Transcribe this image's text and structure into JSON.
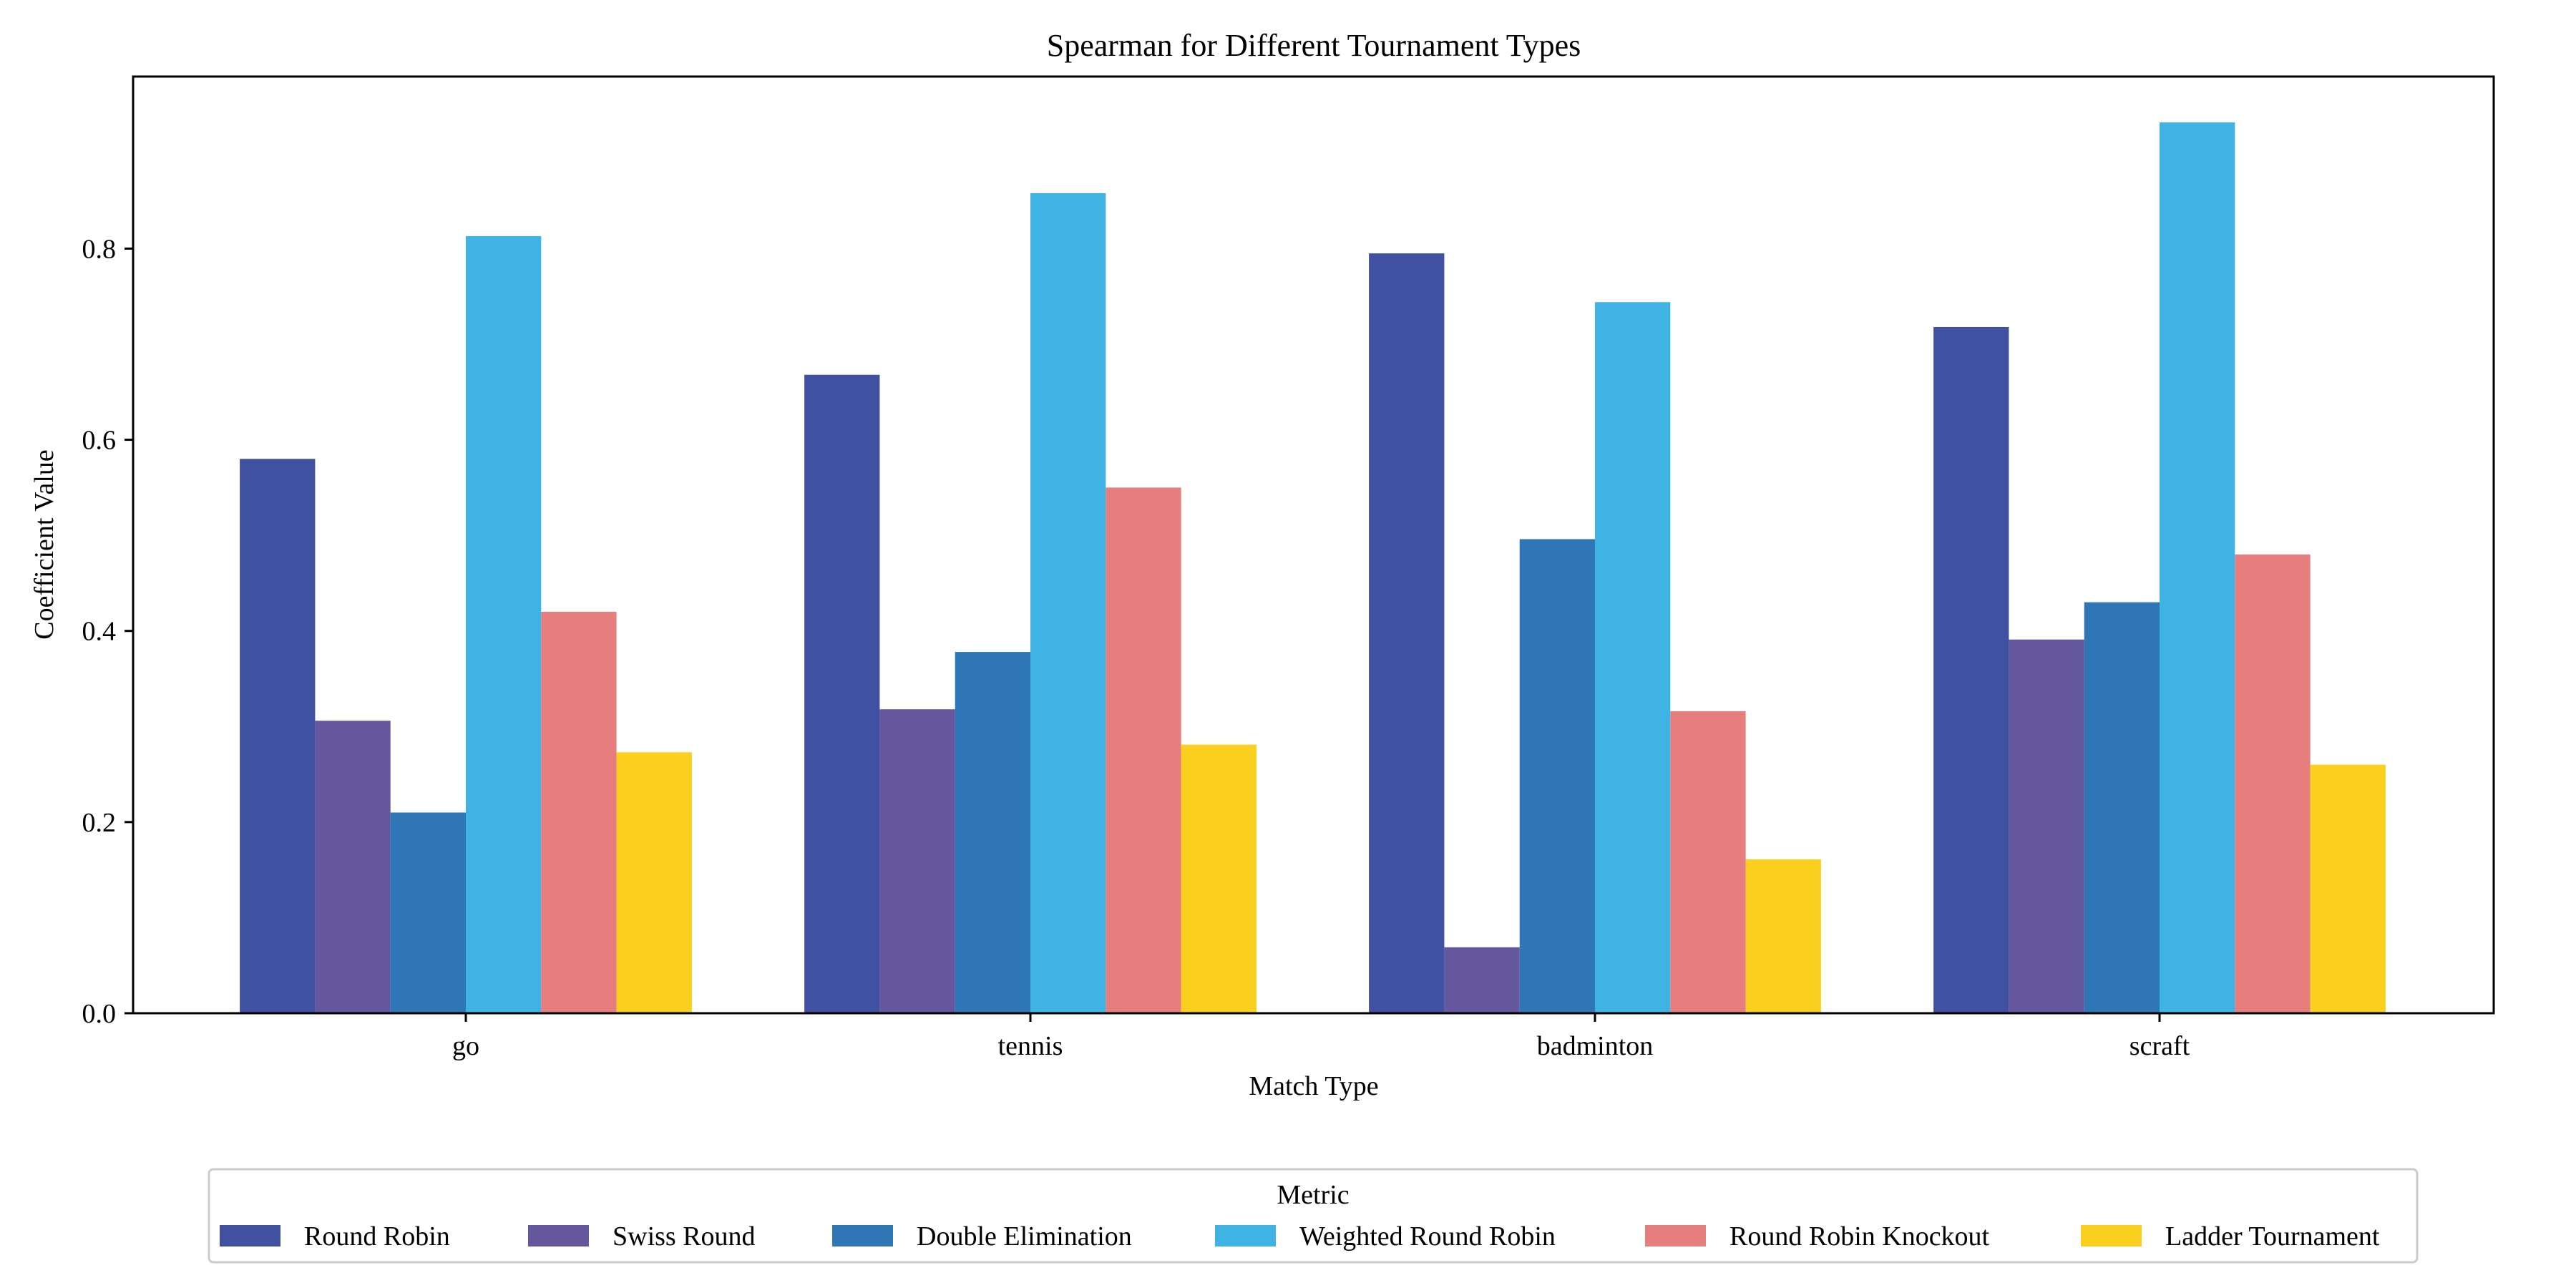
{
  "chart_data": {
    "type": "bar",
    "title": "Spearman for Different Tournament Types",
    "xlabel": "Match Type",
    "ylabel": "Coefficient Value",
    "ylim": [
      0,
      0.98
    ],
    "yticks": [
      0.0,
      0.2,
      0.4,
      0.6,
      0.8
    ],
    "ytick_labels": [
      "0.0",
      "0.2",
      "0.4",
      "0.6",
      "0.8"
    ],
    "categories": [
      "go",
      "tennis",
      "badminton",
      "scraft"
    ],
    "series": [
      {
        "name": "Round Robin",
        "color": "#3f51a0",
        "values": [
          0.58,
          0.668,
          0.795,
          0.718
        ]
      },
      {
        "name": "Swiss Round",
        "color": "#65579e",
        "values": [
          0.306,
          0.318,
          0.069,
          0.391
        ]
      },
      {
        "name": "Double Elimination",
        "color": "#2f76b6",
        "values": [
          0.21,
          0.378,
          0.496,
          0.43
        ]
      },
      {
        "name": "Weighted Round Robin",
        "color": "#3fb3e3",
        "values": [
          0.813,
          0.858,
          0.744,
          0.932
        ]
      },
      {
        "name": "Round Robin Knockout",
        "color": "#e67e7e",
        "values": [
          0.42,
          0.55,
          0.316,
          0.48
        ]
      },
      {
        "name": "Ladder Tournament",
        "color": "#fbcf1e",
        "values": [
          0.273,
          0.281,
          0.161,
          0.26
        ]
      }
    ],
    "legend": {
      "title": "Metric",
      "placement": "bottom-center",
      "ncol": 6
    },
    "grid": false
  }
}
